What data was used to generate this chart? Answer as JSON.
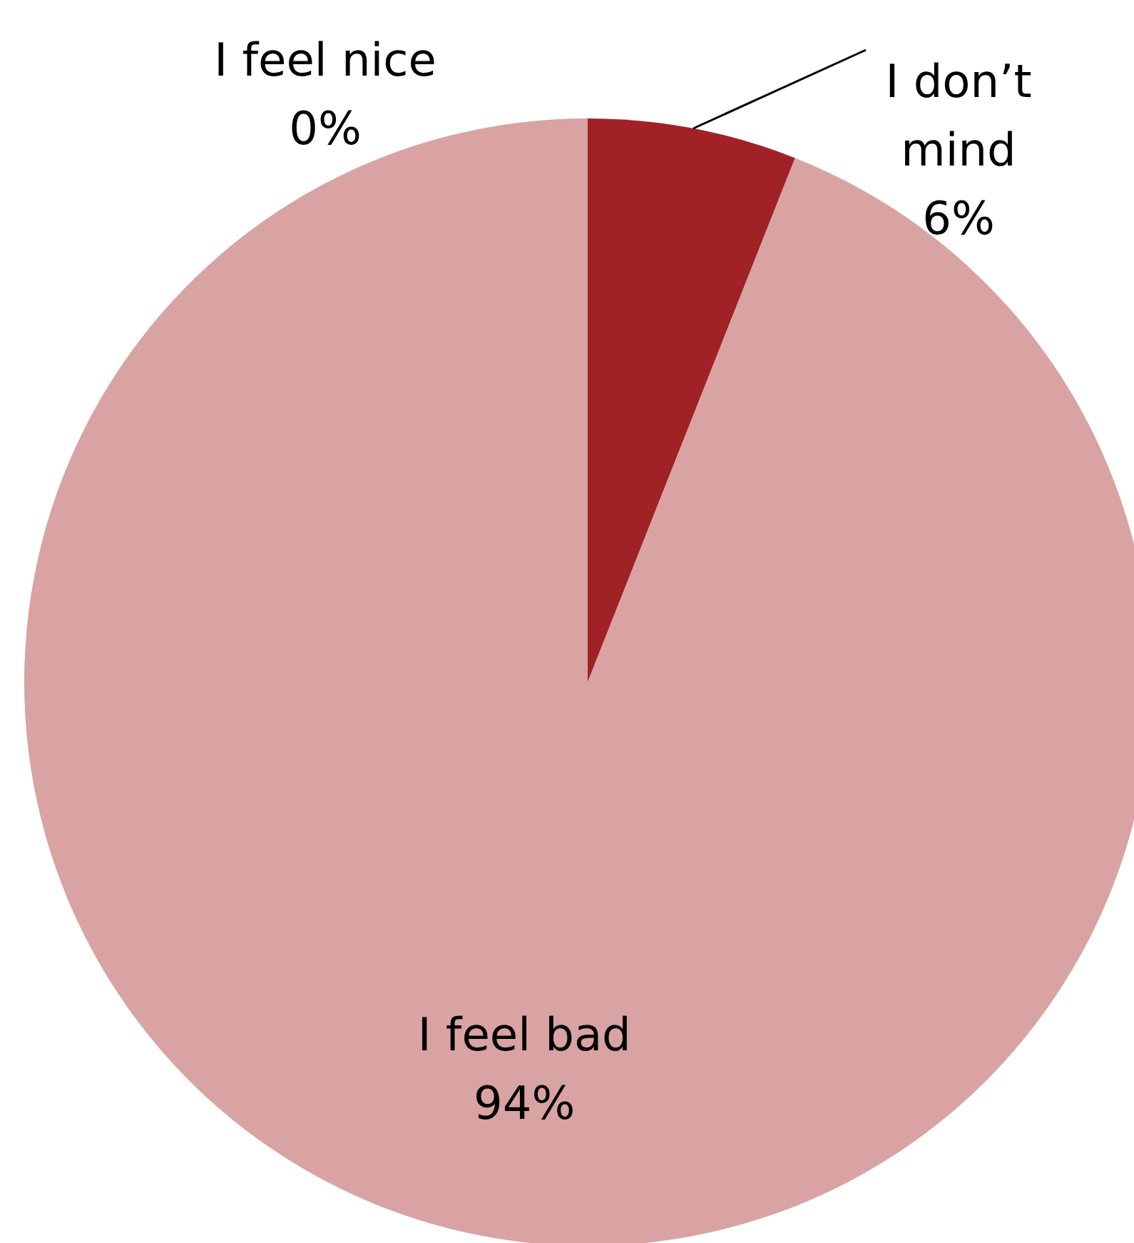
{
  "chart_data": {
    "type": "pie",
    "categories": [
      "I feel nice",
      "I don’t mind",
      "I feel bad"
    ],
    "values": [
      0,
      6,
      94
    ],
    "value_labels": [
      "0%",
      "6%",
      "94%"
    ],
    "colors": [
      "#c0504d",
      "#a02226",
      "#d9a3a3"
    ]
  }
}
